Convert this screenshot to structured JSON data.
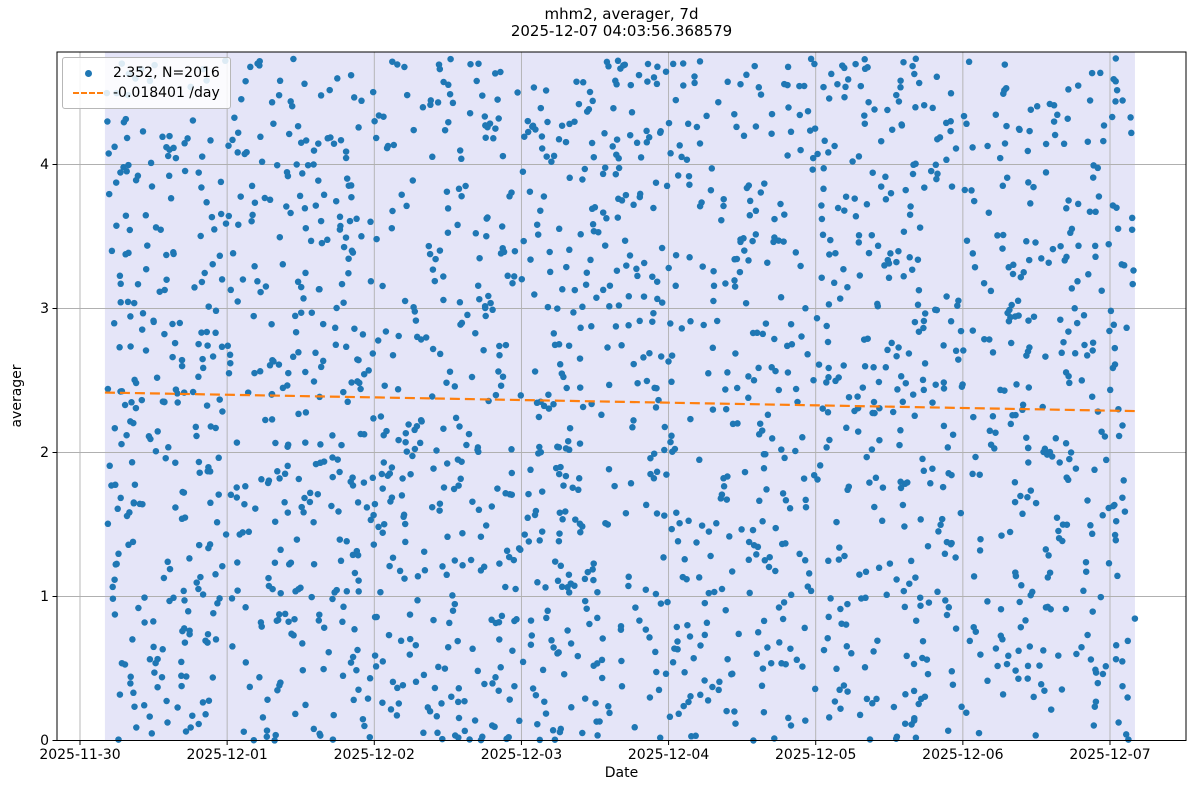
{
  "chart_data": {
    "type": "scatter",
    "title": "mhm2, averager, 7d",
    "subtitle": "2025-12-07 04:03:56.368579",
    "xlabel": "Date",
    "ylabel": "averager",
    "x_tick_labels": [
      "2025-11-30",
      "2025-12-01",
      "2025-12-02",
      "2025-12-03",
      "2025-12-04",
      "2025-12-05",
      "2025-12-06",
      "2025-12-07"
    ],
    "y_tick_labels": [
      "0",
      "1",
      "2",
      "3",
      "4"
    ],
    "y_ticks": [
      0,
      1,
      2,
      3,
      4
    ],
    "ylim": [
      0,
      4.78
    ],
    "xlim_days_from_first_tick": [
      -0.156,
      7.517
    ],
    "grid": true,
    "grid_color": "#b0b0b0",
    "background_band": {
      "meaning": "7d data window",
      "from": "2025-11-30 04:03:56",
      "to": "2025-12-07 04:03:56",
      "days_range": [
        0.16941,
        7.16941
      ],
      "color": "#e5e5f8"
    },
    "legend": {
      "position": "upper left",
      "entries": [
        {
          "label": "2.352, N=2016",
          "marker": "dot",
          "color": "#1f77b4"
        },
        {
          "label": "-0.018401 /day",
          "marker": "dashed-line",
          "color": "#ff7f0e"
        }
      ]
    },
    "series": [
      {
        "name": "averager samples",
        "type": "scatter",
        "color": "#1f77b4",
        "marker_diameter_px": 6.5,
        "n_points": 2016,
        "mean": 2.352,
        "y_distribution": "uniform",
        "y_range": [
          0,
          4.74
        ],
        "x_days_range": [
          0.16941,
          7.16941
        ],
        "seed": 20161207
      },
      {
        "name": "trend",
        "type": "line",
        "linestyle": "dashed",
        "color": "#ff7f0e",
        "slope_per_day": -0.018401,
        "mean": 2.352,
        "window_days": 7,
        "x_days_range": [
          0.16941,
          7.16941
        ]
      }
    ]
  }
}
